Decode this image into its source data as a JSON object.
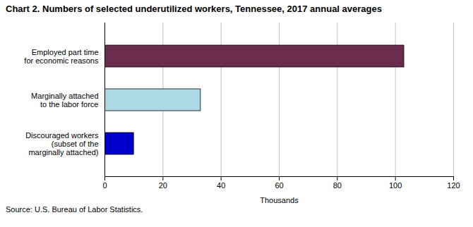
{
  "chart_data": {
    "type": "bar",
    "orientation": "horizontal",
    "title": "Chart 2. Numbers of selected underutilized workers, Tennessee, 2017 annual averages",
    "categories": [
      "Discouraged workers\n(subset of the\nmarginally attached)",
      "Marginally attached\nto the labor force",
      "Employed part time\nfor economic reasons"
    ],
    "values": [
      10,
      33,
      103
    ],
    "colors": [
      "#0000CC",
      "#ADD8E6",
      "#6B2D4E"
    ],
    "xlabel": "Thousands",
    "xlim": [
      0,
      120
    ],
    "xticks": [
      0,
      20,
      40,
      60,
      80,
      100,
      120
    ],
    "grid": true,
    "source": "Source: U.S. Bureau of Labor Statistics."
  }
}
